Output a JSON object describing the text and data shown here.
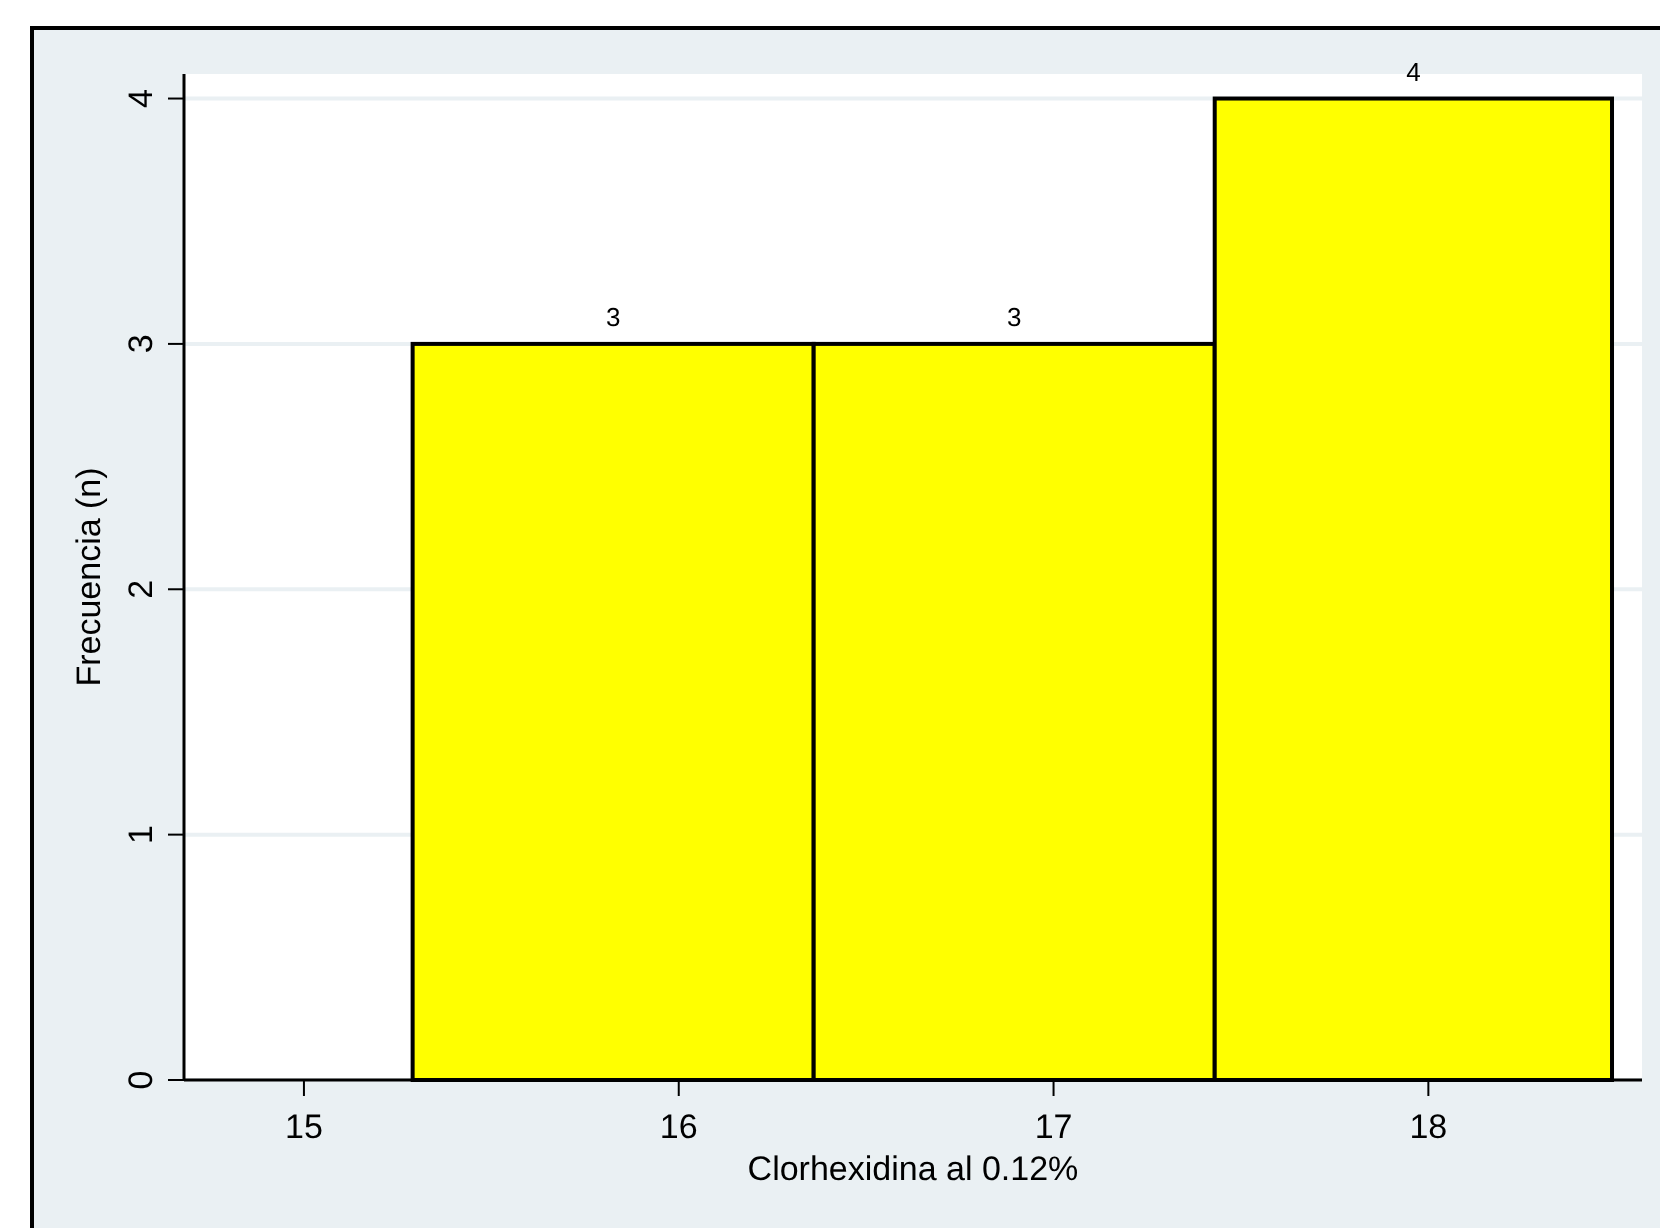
{
  "chart_data": {
    "type": "histogram",
    "xlabel": "Clorhexidina al 0.12%",
    "ylabel": "Frecuencia (n)",
    "bins": [
      15.29,
      16.36,
      17.43,
      18.49
    ],
    "values": [
      3,
      3,
      4
    ],
    "color": "#ffff00",
    "xlim": [
      14.68,
      18.57
    ],
    "xticks": [
      15,
      16,
      17,
      18
    ],
    "ylim": [
      0,
      4.1
    ],
    "yticks": [
      0,
      1,
      2,
      3,
      4
    ],
    "grid": "y",
    "data_labels": true
  }
}
